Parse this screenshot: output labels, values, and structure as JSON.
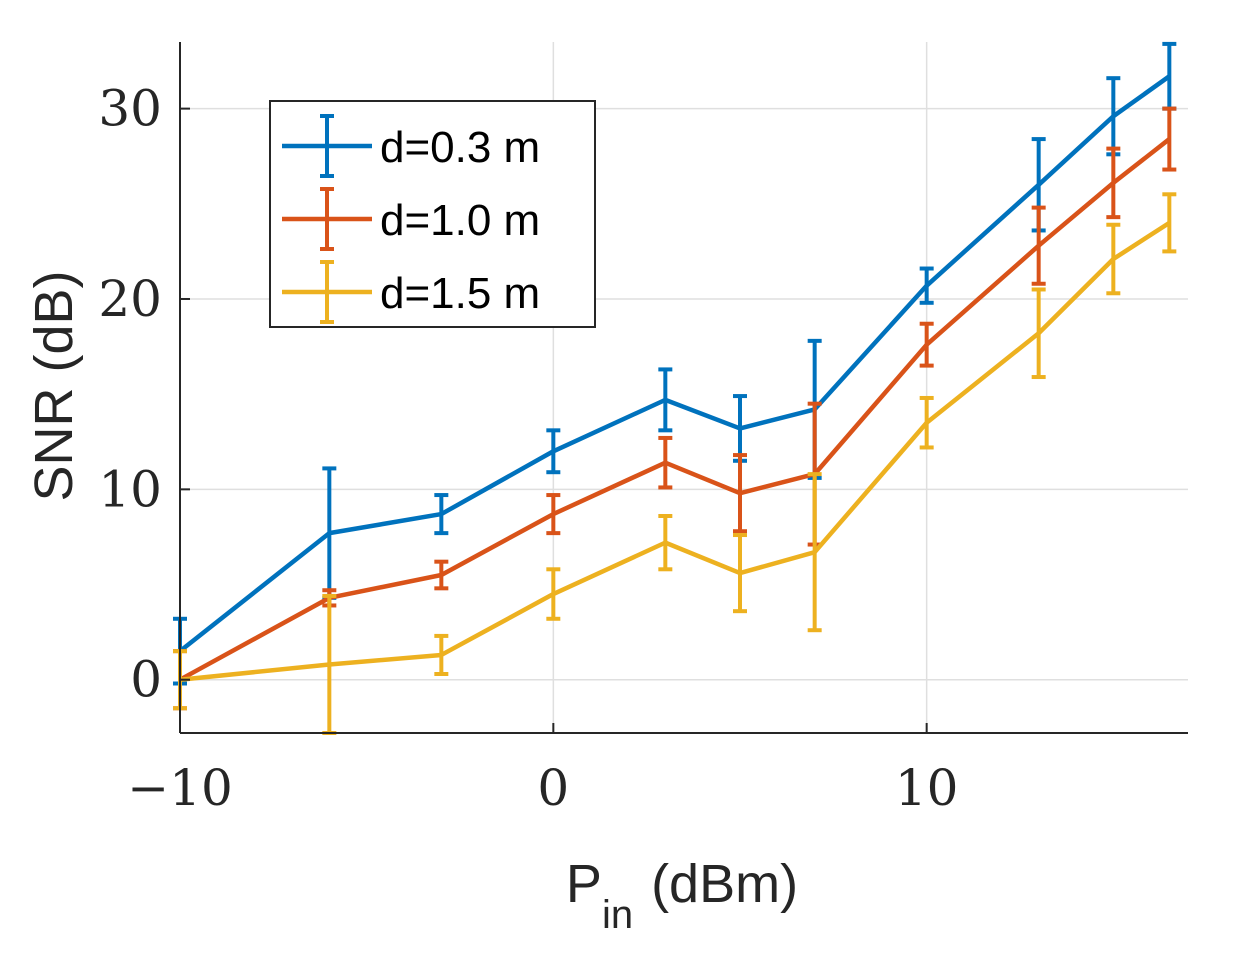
{
  "chart_data": {
    "type": "line",
    "title": "",
    "xlabel": "P",
    "xlabel_sub": "in",
    "xlabel_unit": "(dBm)",
    "ylabel": "SNR (dB)",
    "xlim": [
      -10,
      17
    ],
    "ylim": [
      -2.8,
      33.5
    ],
    "xticks": [
      -10,
      0,
      10
    ],
    "xtick_labels": [
      "−10",
      "0",
      "10"
    ],
    "yticks": [
      0,
      10,
      20,
      30
    ],
    "ytick_labels": [
      "0",
      "10",
      "20",
      "30"
    ],
    "grid": true,
    "legend_position": "top-left",
    "x": [
      -10,
      -6,
      -3,
      0,
      3,
      5,
      7,
      10,
      13,
      15,
      16.5
    ],
    "series": [
      {
        "name": "d=0.3 m",
        "color": "#0072BD",
        "values": [
          1.5,
          7.7,
          8.7,
          12.0,
          14.7,
          13.2,
          14.2,
          20.7,
          26.0,
          29.6,
          31.7
        ],
        "err": [
          1.7,
          3.4,
          1.0,
          1.1,
          1.6,
          1.7,
          3.6,
          0.9,
          2.4,
          2.0,
          1.7
        ]
      },
      {
        "name": "d=1.0 m",
        "color": "#D95319",
        "values": [
          0.0,
          4.3,
          5.5,
          8.7,
          11.4,
          9.8,
          10.8,
          17.6,
          22.8,
          26.1,
          28.4
        ],
        "err": [
          1.5,
          0.4,
          0.7,
          1.0,
          1.3,
          2.0,
          3.7,
          1.1,
          2.0,
          1.8,
          1.6
        ]
      },
      {
        "name": "d=1.5 m",
        "color": "#EDB120",
        "values": [
          0.0,
          0.8,
          1.3,
          4.5,
          7.2,
          5.6,
          6.7,
          13.5,
          18.2,
          22.1,
          24.0
        ],
        "err": [
          1.5,
          3.6,
          1.0,
          1.3,
          1.4,
          2.0,
          4.1,
          1.3,
          2.3,
          1.8,
          1.5
        ]
      }
    ]
  }
}
